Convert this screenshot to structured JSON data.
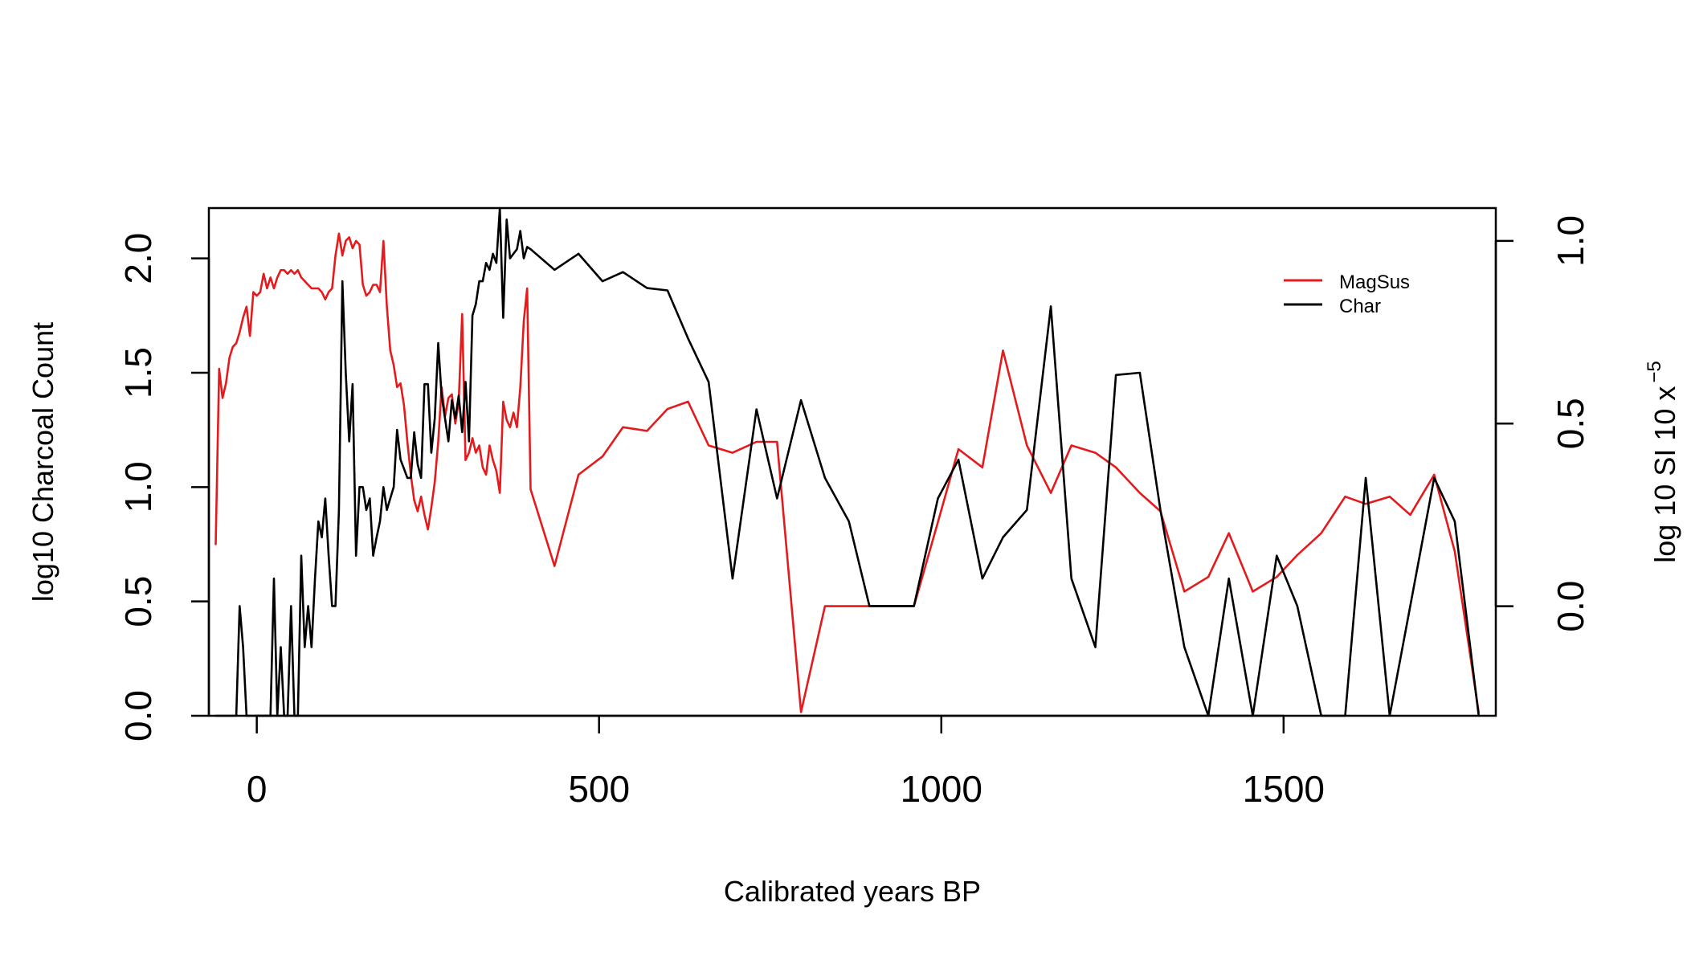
{
  "chart_data": {
    "type": "line",
    "title": "",
    "xlabel": "Calibrated years BP",
    "ylabel_left": "log10 Charcoal Count",
    "ylabel_right_main": "log 10 SI 10 x",
    "ylabel_right_sup": "−5",
    "xlim": [
      -70,
      1810
    ],
    "ylim_left": [
      0,
      2.22
    ],
    "ylim_right": [
      -0.3,
      1.09
    ],
    "x_ticks": [
      0,
      500,
      1000,
      1500
    ],
    "x_tick_labels": [
      "0",
      "500",
      "1000",
      "1500"
    ],
    "y_left_ticks": [
      0.0,
      0.5,
      1.0,
      1.5,
      2.0
    ],
    "y_left_tick_labels": [
      "0.0",
      "0.5",
      "1.0",
      "1.5",
      "2.0"
    ],
    "y_right_ticks": [
      0.0,
      0.5,
      1.0
    ],
    "y_right_tick_labels": [
      "0.0",
      "0.5",
      "1.0"
    ],
    "grid": false,
    "legend_position": "top-right",
    "legend": [
      {
        "label": "MagSus",
        "color": "#e41a1c"
      },
      {
        "label": "Char",
        "color": "#000000"
      }
    ],
    "series": [
      {
        "name": "MagSus",
        "axis": "right",
        "color": "#e41a1c",
        "x": [
          -60,
          -55,
          -50,
          -45,
          -40,
          -35,
          -30,
          -25,
          -20,
          -15,
          -10,
          -5,
          0,
          5,
          10,
          15,
          20,
          25,
          30,
          35,
          40,
          45,
          50,
          55,
          60,
          65,
          70,
          75,
          80,
          85,
          90,
          95,
          100,
          105,
          110,
          115,
          120,
          125,
          130,
          135,
          140,
          145,
          150,
          155,
          160,
          165,
          170,
          175,
          180,
          185,
          190,
          195,
          200,
          205,
          210,
          215,
          220,
          225,
          230,
          235,
          240,
          245,
          250,
          255,
          260,
          265,
          270,
          275,
          280,
          285,
          290,
          295,
          300,
          305,
          310,
          315,
          320,
          325,
          330,
          335,
          340,
          345,
          350,
          355,
          360,
          365,
          370,
          375,
          380,
          385,
          390,
          395,
          400,
          435,
          470,
          505,
          535,
          570,
          600,
          630,
          660,
          695,
          730,
          760,
          795,
          830,
          865,
          895,
          930,
          960,
          995,
          1025,
          1060,
          1090,
          1125,
          1160,
          1190,
          1225,
          1255,
          1290,
          1320,
          1355,
          1390,
          1420,
          1455,
          1490,
          1520,
          1555,
          1590,
          1620,
          1655,
          1685,
          1720,
          1750,
          1785
        ],
        "y": [
          0.17,
          0.65,
          0.57,
          0.61,
          0.68,
          0.71,
          0.72,
          0.75,
          0.79,
          0.82,
          0.74,
          0.86,
          0.85,
          0.86,
          0.91,
          0.87,
          0.9,
          0.87,
          0.9,
          0.92,
          0.92,
          0.91,
          0.92,
          0.91,
          0.92,
          0.9,
          0.89,
          0.88,
          0.87,
          0.87,
          0.87,
          0.86,
          0.84,
          0.86,
          0.87,
          0.96,
          1.02,
          0.96,
          1.0,
          1.01,
          0.98,
          1.0,
          0.99,
          0.88,
          0.85,
          0.86,
          0.88,
          0.88,
          0.86,
          1.0,
          0.82,
          0.7,
          0.66,
          0.6,
          0.61,
          0.55,
          0.45,
          0.36,
          0.29,
          0.26,
          0.3,
          0.25,
          0.21,
          0.27,
          0.34,
          0.45,
          0.6,
          0.52,
          0.57,
          0.58,
          0.5,
          0.56,
          0.8,
          0.4,
          0.42,
          0.46,
          0.42,
          0.44,
          0.38,
          0.36,
          0.44,
          0.4,
          0.37,
          0.31,
          0.56,
          0.51,
          0.49,
          0.53,
          0.49,
          0.6,
          0.78,
          0.87,
          0.32,
          0.11,
          0.36,
          0.41,
          0.49,
          0.48,
          0.54,
          0.56,
          0.44,
          0.42,
          0.45,
          0.45,
          -0.29,
          0.0,
          0.0,
          0.0,
          0.0,
          0.0,
          0.23,
          0.43,
          0.38,
          0.7,
          0.44,
          0.31,
          0.44,
          0.42,
          0.38,
          0.31,
          0.26,
          0.04,
          0.08,
          0.2,
          0.04,
          0.08,
          0.14,
          0.2,
          0.3,
          0.28,
          0.3,
          0.25,
          0.36,
          0.15,
          -0.29
        ]
      },
      {
        "name": "Char",
        "axis": "left",
        "color": "#000000",
        "x": [
          -60,
          -45,
          -30,
          -25,
          -20,
          -15,
          -10,
          -5,
          0,
          5,
          10,
          15,
          20,
          25,
          30,
          35,
          40,
          45,
          50,
          55,
          60,
          65,
          70,
          75,
          80,
          85,
          90,
          95,
          100,
          105,
          110,
          115,
          120,
          125,
          130,
          135,
          140,
          145,
          150,
          155,
          160,
          165,
          170,
          175,
          180,
          185,
          190,
          195,
          200,
          205,
          210,
          215,
          220,
          225,
          230,
          235,
          240,
          245,
          250,
          255,
          260,
          265,
          270,
          275,
          280,
          285,
          290,
          295,
          300,
          305,
          310,
          315,
          320,
          325,
          330,
          335,
          340,
          345,
          350,
          355,
          360,
          365,
          370,
          375,
          380,
          385,
          390,
          395,
          400,
          435,
          470,
          505,
          535,
          570,
          600,
          630,
          660,
          695,
          730,
          760,
          795,
          830,
          865,
          895,
          930,
          960,
          995,
          1025,
          1060,
          1090,
          1125,
          1160,
          1190,
          1225,
          1255,
          1290,
          1320,
          1355,
          1390,
          1420,
          1455,
          1490,
          1520,
          1555,
          1590,
          1620,
          1655,
          1685,
          1720,
          1750,
          1785
        ],
        "y": [
          0.0,
          0.0,
          0.0,
          0.48,
          0.3,
          0.0,
          0.0,
          0.0,
          0.0,
          0.0,
          0.0,
          0.0,
          0.0,
          0.6,
          0.0,
          0.3,
          0.0,
          0.0,
          0.48,
          0.0,
          0.0,
          0.7,
          0.3,
          0.48,
          0.3,
          0.6,
          0.85,
          0.78,
          0.95,
          0.7,
          0.48,
          0.48,
          0.9,
          1.9,
          1.5,
          1.2,
          1.45,
          0.7,
          1.0,
          1.0,
          0.9,
          0.95,
          0.7,
          0.78,
          0.85,
          1.0,
          0.9,
          0.95,
          1.0,
          1.25,
          1.12,
          1.08,
          1.04,
          1.04,
          1.24,
          1.1,
          1.04,
          1.45,
          1.45,
          1.15,
          1.3,
          1.63,
          1.4,
          1.3,
          1.2,
          1.38,
          1.3,
          1.4,
          1.24,
          1.46,
          1.2,
          1.75,
          1.8,
          1.9,
          1.9,
          1.98,
          1.95,
          2.02,
          1.98,
          2.22,
          1.74,
          2.17,
          2.0,
          2.02,
          2.04,
          2.12,
          2.0,
          2.05,
          2.04,
          1.95,
          2.02,
          1.9,
          1.94,
          1.87,
          1.86,
          1.65,
          1.46,
          0.6,
          1.34,
          0.95,
          1.38,
          1.04,
          0.85,
          0.48,
          0.48,
          0.48,
          0.95,
          1.12,
          0.6,
          0.78,
          0.9,
          1.79,
          0.6,
          0.3,
          1.49,
          1.5,
          0.9,
          0.3,
          0.0,
          0.6,
          0.0,
          0.7,
          0.48,
          0.0,
          0.0,
          1.04,
          0.0,
          0.48,
          1.04,
          0.85,
          0.0
        ]
      }
    ]
  }
}
